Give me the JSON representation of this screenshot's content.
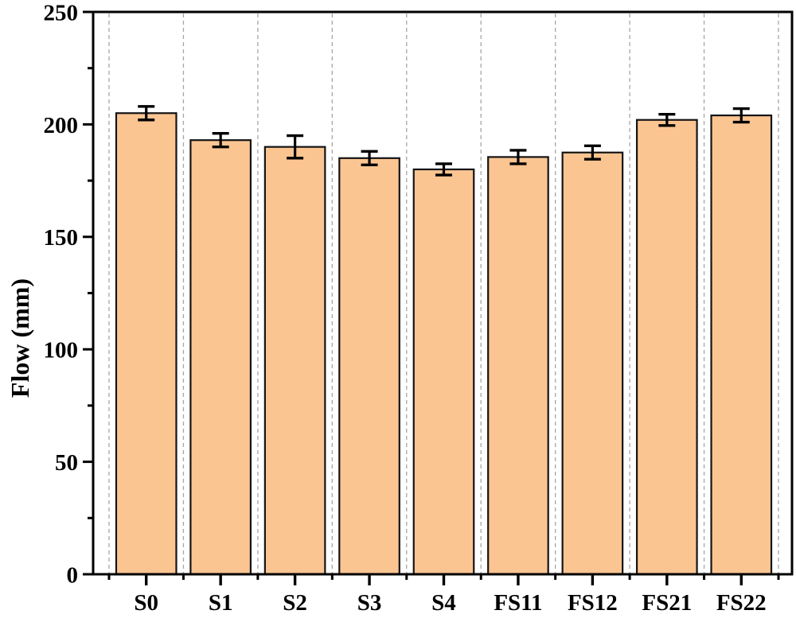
{
  "chart_data": {
    "type": "bar",
    "title": "",
    "xlabel": "",
    "ylabel": "Flow (mm)",
    "categories": [
      "S0",
      "S1",
      "S2",
      "S3",
      "S4",
      "FS11",
      "FS12",
      "FS21",
      "FS22"
    ],
    "series": [
      {
        "name": "Flow",
        "values": [
          205,
          193,
          190,
          185,
          180,
          185.5,
          187.5,
          202,
          204
        ],
        "errors": [
          3,
          3,
          5,
          3,
          2.5,
          3,
          3,
          2.5,
          3
        ]
      }
    ],
    "ylim": [
      0,
      250
    ],
    "ytick_major_step": 50,
    "ytick_minor_step": 25,
    "ytick_labels": [
      "0",
      "50",
      "100",
      "150",
      "200",
      "250"
    ],
    "grid": "vertical-dashed-category-boundaries",
    "legend": "none",
    "frame": "full-box",
    "colors": {
      "bar_fill": "#FBC592",
      "bar_border": "#141414",
      "error_bar": "#000000",
      "grid_line": "#A6A6A6",
      "axis": "#000000",
      "background": "#FFFFFF",
      "text": "#000000"
    }
  }
}
